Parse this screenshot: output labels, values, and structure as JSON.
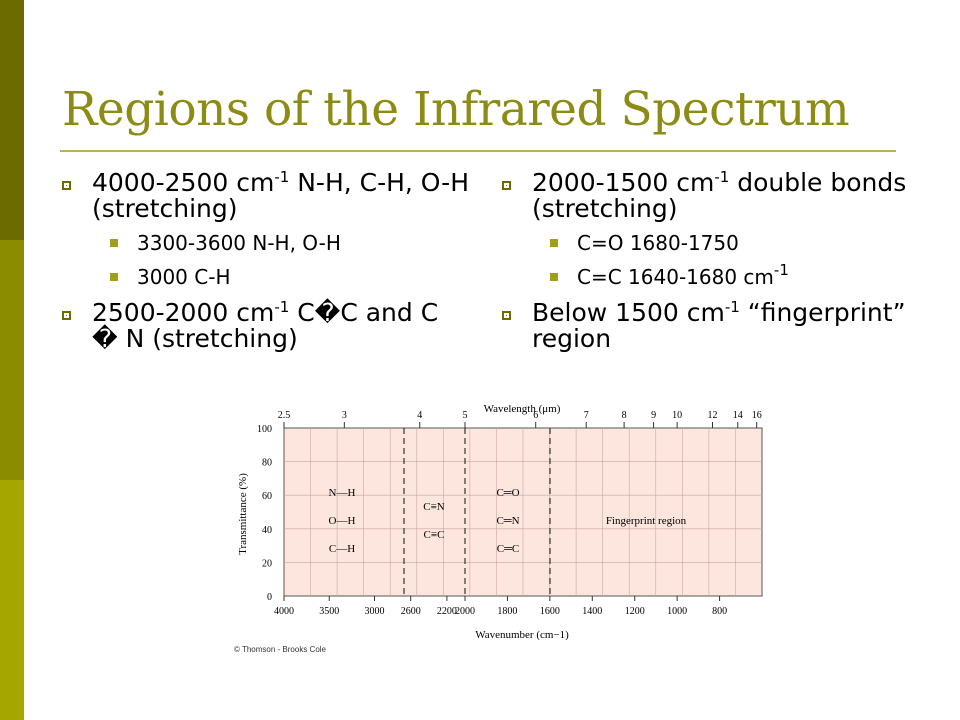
{
  "slide": {
    "title": "Regions of the Infrared Spectrum",
    "colors": {
      "title": "#8c8c14",
      "bar_dark": "#6b6b00",
      "bar_mid": "#8c8c00",
      "bar_light": "#a6a600",
      "plot_fill": "#fde6de"
    }
  },
  "left": {
    "b1": {
      "pre": "4000-2500 cm",
      "sup": "-1",
      "post": " N-H, C-H, O-H (stretching)"
    },
    "b1_sub": [
      "3300-3600 N-H, O-H",
      "3000 C-H"
    ],
    "b2": {
      "pre": "2500-2000 cm",
      "sup": "-1",
      "post": " C�C and C � N (stretching)"
    }
  },
  "right": {
    "b1": {
      "pre": "2000-1500 cm",
      "sup": "-1",
      "post": " double bonds (stretching)"
    },
    "b1_sub0": "C=O 1680-1750",
    "b1_sub1": {
      "pre": "C=C 1640-1680 cm",
      "sup": "-1"
    },
    "b2": {
      "pre": "Below 1500 cm",
      "sup": "-1",
      "post": " “fingerprint” region"
    }
  },
  "figure": {
    "top_axis_label": "Wavelength (μm)",
    "top_ticks": [
      "2.5",
      "3",
      "4",
      "5",
      "6",
      "7",
      "8",
      "9",
      "10",
      "12",
      "14",
      "16"
    ],
    "bottom_axis_label": "Wavenumber (cm−1)",
    "bottom_ticks": [
      "4000",
      "3500",
      "3000",
      "2600",
      "2200",
      "2000",
      "1800",
      "1600",
      "1400",
      "1200",
      "1000",
      "800"
    ],
    "y_axis_label": "Transmittance (%)",
    "y_ticks": [
      "100",
      "80",
      "60",
      "40",
      "20",
      "0"
    ],
    "region1_labels": [
      "N—H",
      "O—H",
      "C—H"
    ],
    "region2_labels": [
      "C≡N",
      "C≡C"
    ],
    "region3_labels": [
      "C═O",
      "C═N",
      "C═C"
    ],
    "fingerprint_label": "Fingerprint region",
    "credit": "© Thomson - Brooks Cole"
  }
}
